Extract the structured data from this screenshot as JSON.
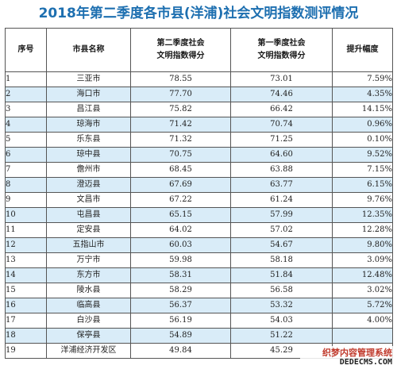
{
  "title": "2018年第二季度各市县(洋浦)社会文明指数测评情况",
  "columns": [
    "序号",
    "市县名称",
    "第二季度社会\n文明指数得分",
    "第一季度社会\n文明指数得分",
    "提升幅度"
  ],
  "rows": [
    {
      "index": "1",
      "name": "三亚市",
      "q2": "78.55",
      "q1": "73.01",
      "rise": "7.59%"
    },
    {
      "index": "2",
      "name": "海口市",
      "q2": "77.70",
      "q1": "74.46",
      "rise": "4.35%"
    },
    {
      "index": "3",
      "name": "昌江县",
      "q2": "75.82",
      "q1": "66.42",
      "rise": "14.15%"
    },
    {
      "index": "4",
      "name": "琼海市",
      "q2": "71.42",
      "q1": "70.74",
      "rise": "0.96%"
    },
    {
      "index": "5",
      "name": "乐东县",
      "q2": "71.32",
      "q1": "71.25",
      "rise": "0.10%"
    },
    {
      "index": "6",
      "name": "琼中县",
      "q2": "70.75",
      "q1": "64.60",
      "rise": "9.52%"
    },
    {
      "index": "7",
      "name": "儋州市",
      "q2": "68.45",
      "q1": "63.88",
      "rise": "7.15%"
    },
    {
      "index": "8",
      "name": "澄迈县",
      "q2": "67.69",
      "q1": "63.77",
      "rise": "6.15%"
    },
    {
      "index": "9",
      "name": "文昌市",
      "q2": "67.22",
      "q1": "61.24",
      "rise": "9.76%"
    },
    {
      "index": "10",
      "name": "屯昌县",
      "q2": "65.15",
      "q1": "57.99",
      "rise": "12.35%"
    },
    {
      "index": "11",
      "name": "定安县",
      "q2": "64.02",
      "q1": "57.02",
      "rise": "12.28%"
    },
    {
      "index": "12",
      "name": "五指山市",
      "q2": "60.03",
      "q1": "54.67",
      "rise": "9.80%"
    },
    {
      "index": "13",
      "name": "万宁市",
      "q2": "59.98",
      "q1": "58.18",
      "rise": "3.09%"
    },
    {
      "index": "14",
      "name": "东方市",
      "q2": "58.31",
      "q1": "51.84",
      "rise": "12.48%"
    },
    {
      "index": "15",
      "name": "陵水县",
      "q2": "58.29",
      "q1": "56.58",
      "rise": "3.02%"
    },
    {
      "index": "16",
      "name": "临高县",
      "q2": "56.37",
      "q1": "53.32",
      "rise": "5.72%"
    },
    {
      "index": "17",
      "name": "白沙县",
      "q2": "56.19",
      "q1": "54.03",
      "rise": "4.00%"
    },
    {
      "index": "18",
      "name": "保亭县",
      "q2": "54.89",
      "q1": "51.22",
      "rise": ""
    },
    {
      "index": "19",
      "name": "洋浦经济开发区",
      "q2": "49.84",
      "q1": "45.29",
      "rise": ""
    }
  ],
  "watermark": {
    "line1": "织梦内容管理系统",
    "line2": "DEDECMS.COM"
  },
  "colors": {
    "title": "#1d6fb0",
    "row_alt": "#d9ecf8",
    "border": "#555555"
  }
}
